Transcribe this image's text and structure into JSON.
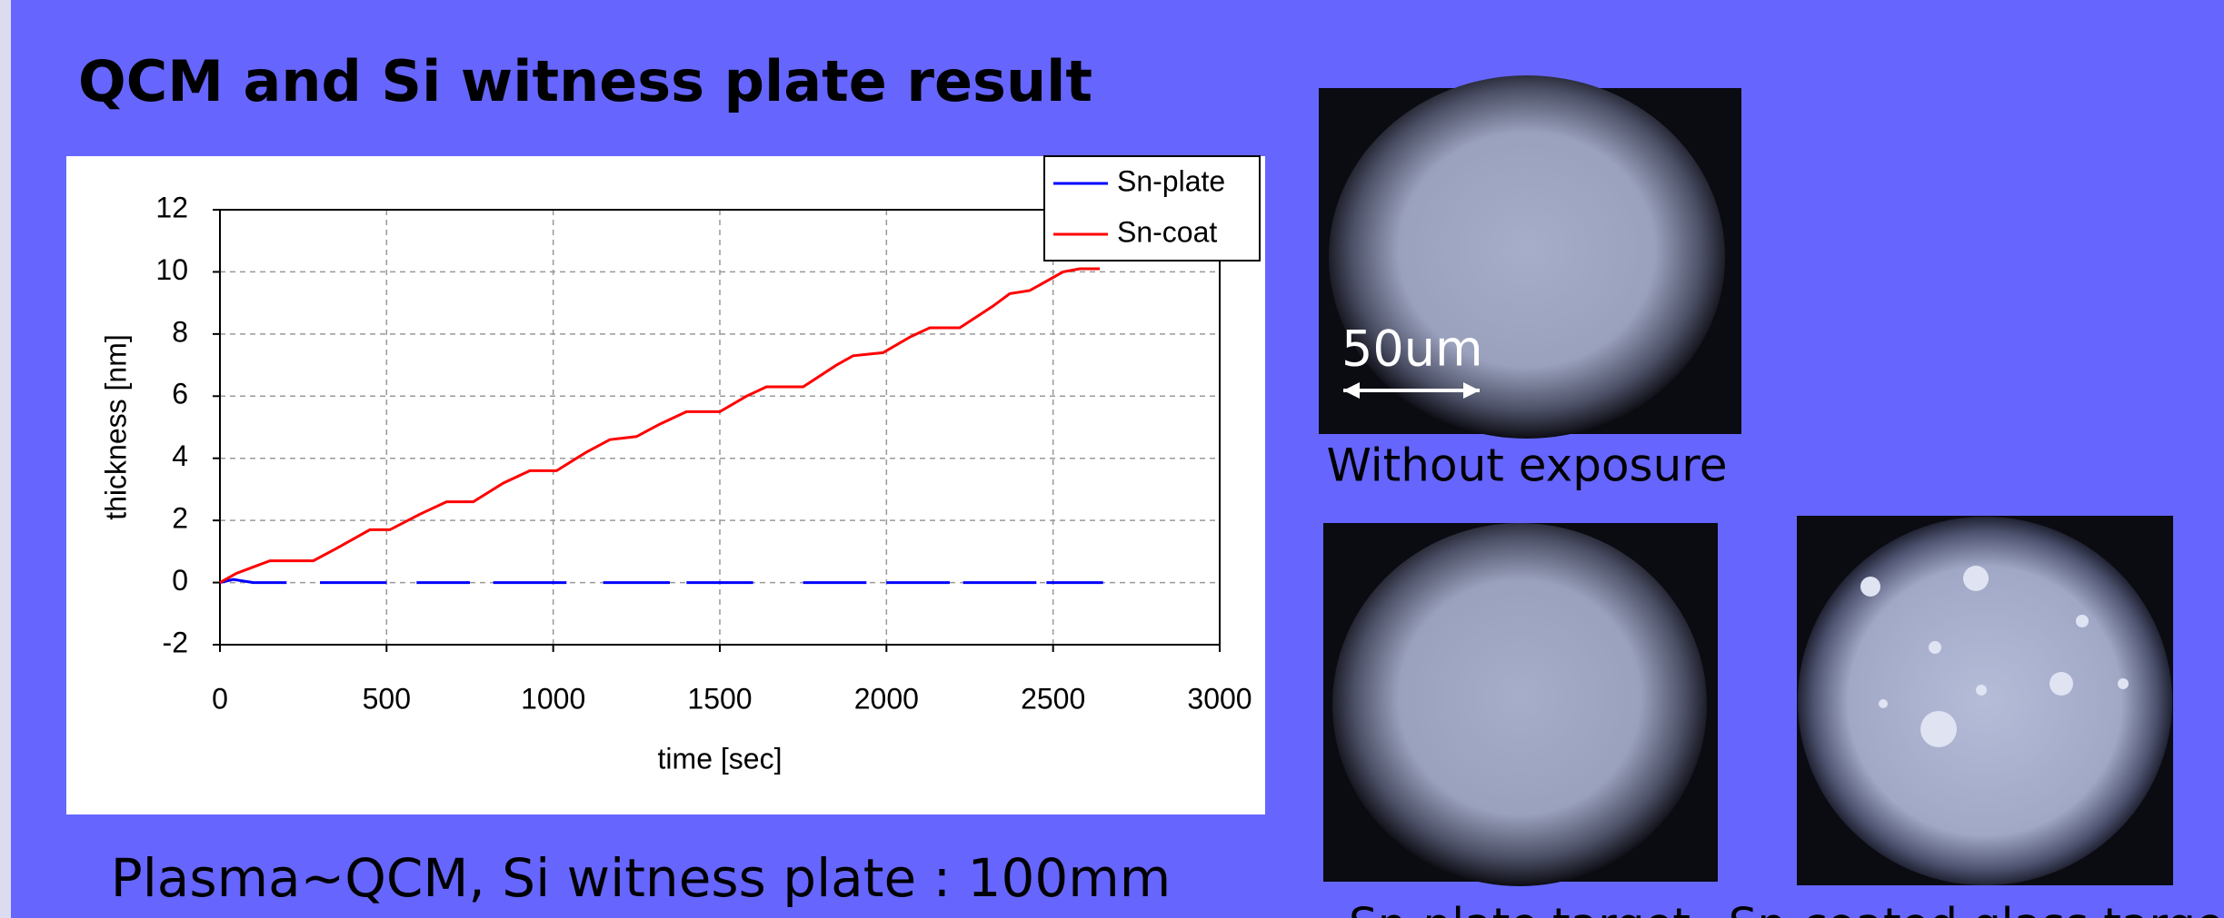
{
  "title": "QCM and Si witness plate result",
  "caption": "Plasma~QCM, Si witness plate : 100mm",
  "images": [
    {
      "label": "Without exposure",
      "scale_label": "50um"
    },
    {
      "label": "Sn-plate target"
    },
    {
      "label": "Sn-coated glass target"
    }
  ],
  "chart_data": {
    "type": "line",
    "xlabel": "time [sec]",
    "ylabel": "thickness [nm]",
    "xlim": [
      0,
      3000
    ],
    "xticks": [
      0,
      500,
      1000,
      1500,
      2000,
      2500,
      3000
    ],
    "ylim": [
      -2,
      12
    ],
    "yticks": [
      -2,
      0,
      2,
      4,
      6,
      8,
      10,
      12
    ],
    "grid": true,
    "legend": "upper right",
    "series": [
      {
        "name": "Sn-plate",
        "color": "#0000ff",
        "x": [
          0,
          40,
          100,
          200,
          250,
          300,
          500,
          545,
          590,
          750,
          785,
          820,
          1040,
          1095,
          1150,
          1350,
          1375,
          1400,
          1600,
          1675,
          1750,
          1940,
          1970,
          2000,
          2190,
          2210,
          2230,
          2450,
          2465,
          2480,
          2650
        ],
        "values": [
          0,
          0.1,
          0,
          0,
          null,
          0,
          0,
          null,
          0,
          0,
          null,
          0,
          0,
          null,
          0,
          0,
          null,
          0,
          0,
          null,
          0,
          0,
          null,
          0,
          0,
          null,
          0,
          0,
          null,
          0,
          0
        ]
      },
      {
        "name": "Sn-coat",
        "color": "#ff0000",
        "x": [
          0,
          50,
          100,
          150,
          280,
          350,
          450,
          510,
          600,
          680,
          760,
          850,
          930,
          1010,
          1100,
          1170,
          1250,
          1320,
          1400,
          1500,
          1580,
          1640,
          1750,
          1850,
          1900,
          1990,
          2070,
          2130,
          2220,
          2320,
          2370,
          2430,
          2530,
          2580,
          2640
        ],
        "values": [
          0,
          0.3,
          0.5,
          0.7,
          0.7,
          1.1,
          1.7,
          1.7,
          2.2,
          2.6,
          2.6,
          3.2,
          3.6,
          3.6,
          4.2,
          4.6,
          4.7,
          5.1,
          5.5,
          5.5,
          6,
          6.3,
          6.3,
          7,
          7.3,
          7.4,
          7.9,
          8.2,
          8.2,
          8.9,
          9.3,
          9.4,
          10,
          10.1,
          10.1
        ]
      }
    ]
  }
}
